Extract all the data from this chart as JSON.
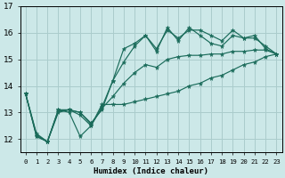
{
  "xlabel": "Humidex (Indice chaleur)",
  "bg_color": "#cce8e8",
  "grid_color": "#aacccc",
  "line_color": "#1a6b5a",
  "xlim": [
    -0.5,
    23.5
  ],
  "ylim": [
    11.5,
    17.0
  ],
  "yticks": [
    12,
    13,
    14,
    15,
    16,
    17
  ],
  "xtick_labels": [
    "0",
    "1",
    "2",
    "3",
    "4",
    "5",
    "6",
    "7",
    "8",
    "9",
    "10",
    "11",
    "12",
    "13",
    "14",
    "15",
    "16",
    "17",
    "18",
    "19",
    "20",
    "21",
    "22",
    "23"
  ],
  "series": [
    [
      13.7,
      12.2,
      11.9,
      13.1,
      13.1,
      13.0,
      12.6,
      13.1,
      14.2,
      14.9,
      15.5,
      15.9,
      15.4,
      16.1,
      15.8,
      16.1,
      16.1,
      15.9,
      15.7,
      16.1,
      15.8,
      15.9,
      15.4,
      15.2
    ],
    [
      13.7,
      12.1,
      11.9,
      13.1,
      13.0,
      12.1,
      12.5,
      13.3,
      13.3,
      13.3,
      13.4,
      13.5,
      13.6,
      13.7,
      13.8,
      14.0,
      14.1,
      14.3,
      14.4,
      14.6,
      14.8,
      14.9,
      15.1,
      15.2
    ],
    [
      13.7,
      12.1,
      11.9,
      13.0,
      13.1,
      12.9,
      12.5,
      13.2,
      14.2,
      15.4,
      15.6,
      15.9,
      15.3,
      16.2,
      15.7,
      16.2,
      15.9,
      15.6,
      15.5,
      15.9,
      15.8,
      15.8,
      15.5,
      15.2
    ],
    [
      13.7,
      12.15,
      11.9,
      13.05,
      13.1,
      13.0,
      12.55,
      13.15,
      13.6,
      14.1,
      14.5,
      14.8,
      14.7,
      15.0,
      15.1,
      15.15,
      15.15,
      15.2,
      15.2,
      15.3,
      15.3,
      15.35,
      15.35,
      15.2
    ]
  ]
}
